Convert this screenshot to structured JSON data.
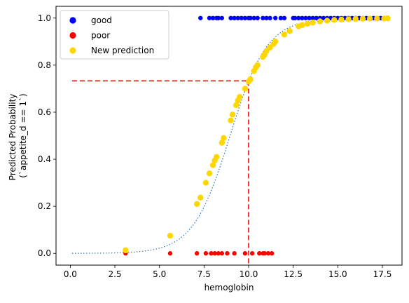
{
  "chart_data": {
    "type": "scatter",
    "xlabel": "hemoglobin",
    "ylabel_lines": [
      "Predicted Probability",
      "(`appetite_d == 1`)"
    ],
    "xlim": [
      -0.8,
      18.6
    ],
    "ylim": [
      -0.05,
      1.05
    ],
    "xticks": [
      0.0,
      2.5,
      5.0,
      7.5,
      10.0,
      12.5,
      15.0,
      17.5
    ],
    "xtick_labels": [
      "0.0",
      "2.5",
      "5.0",
      "7.5",
      "10.0",
      "12.5",
      "15.0",
      "17.5"
    ],
    "yticks": [
      0.0,
      0.2,
      0.4,
      0.6,
      0.8,
      1.0
    ],
    "ytick_labels": [
      "0.0",
      "0.2",
      "0.4",
      "0.6",
      "0.8",
      "1.0"
    ],
    "grid": false,
    "legend_position": "top-left",
    "series": [
      {
        "name": "good",
        "color": "#0000ff",
        "y": 1.0,
        "x": [
          7.3,
          7.8,
          8.0,
          8.2,
          8.3,
          8.5,
          9.0,
          9.2,
          9.4,
          9.6,
          9.8,
          10.0,
          10.1,
          10.3,
          10.5,
          10.8,
          11.0,
          11.2,
          11.5,
          11.8,
          12.0,
          12.5,
          12.6,
          12.8,
          13.0,
          13.2,
          13.4,
          13.6,
          13.8,
          14.0,
          14.2,
          14.4,
          14.6,
          14.8,
          15.0,
          15.2,
          15.4,
          15.6,
          15.8,
          16.0,
          16.2,
          16.4,
          16.6,
          16.8,
          17.0,
          17.2,
          17.4,
          17.6,
          17.8
        ]
      },
      {
        "name": "poor",
        "color": "#ff0000",
        "y": 0.0,
        "x": [
          3.1,
          5.6,
          7.1,
          7.6,
          7.9,
          8.1,
          8.3,
          8.5,
          8.8,
          9.2,
          9.8,
          10.2,
          10.6,
          10.8,
          10.9,
          11.1,
          11.3
        ]
      },
      {
        "name": "New prediction",
        "color": "#ffd700",
        "points": [
          [
            3.1,
            0.013
          ],
          [
            5.6,
            0.075
          ],
          [
            7.1,
            0.21
          ],
          [
            7.3,
            0.237
          ],
          [
            7.6,
            0.3
          ],
          [
            7.8,
            0.34
          ],
          [
            8.0,
            0.375
          ],
          [
            8.1,
            0.395
          ],
          [
            8.2,
            0.41
          ],
          [
            8.5,
            0.47
          ],
          [
            8.6,
            0.49
          ],
          [
            9.0,
            0.565
          ],
          [
            9.1,
            0.59
          ],
          [
            9.3,
            0.63
          ],
          [
            9.4,
            0.65
          ],
          [
            9.5,
            0.665
          ],
          [
            9.8,
            0.7
          ],
          [
            10.0,
            0.73
          ],
          [
            10.1,
            0.74
          ],
          [
            10.3,
            0.775
          ],
          [
            10.4,
            0.79
          ],
          [
            10.5,
            0.8
          ],
          [
            10.8,
            0.835
          ],
          [
            10.9,
            0.845
          ],
          [
            11.0,
            0.86
          ],
          [
            11.2,
            0.875
          ],
          [
            11.4,
            0.89
          ],
          [
            11.5,
            0.9
          ],
          [
            12.0,
            0.93
          ],
          [
            12.3,
            0.945
          ],
          [
            12.8,
            0.965
          ],
          [
            13.0,
            0.97
          ],
          [
            13.3,
            0.976
          ],
          [
            13.6,
            0.981
          ],
          [
            14.0,
            0.986
          ],
          [
            14.4,
            0.989
          ],
          [
            14.8,
            0.992
          ],
          [
            15.2,
            0.994
          ],
          [
            15.6,
            0.995
          ],
          [
            16.0,
            0.996
          ],
          [
            16.4,
            0.997
          ],
          [
            16.8,
            0.998
          ],
          [
            17.2,
            0.998
          ],
          [
            17.6,
            0.998
          ],
          [
            17.8,
            0.999
          ]
        ]
      }
    ],
    "fit_curve": {
      "style": "dotted",
      "color": "#1f77b4",
      "x_range": [
        0.1,
        17.8
      ],
      "intercept": -8.6,
      "slope": 0.96
    },
    "reference_line": {
      "color": "#ff0000",
      "style": "dashed",
      "x": 10.0,
      "y": 0.733,
      "x_start": 0.1
    }
  }
}
